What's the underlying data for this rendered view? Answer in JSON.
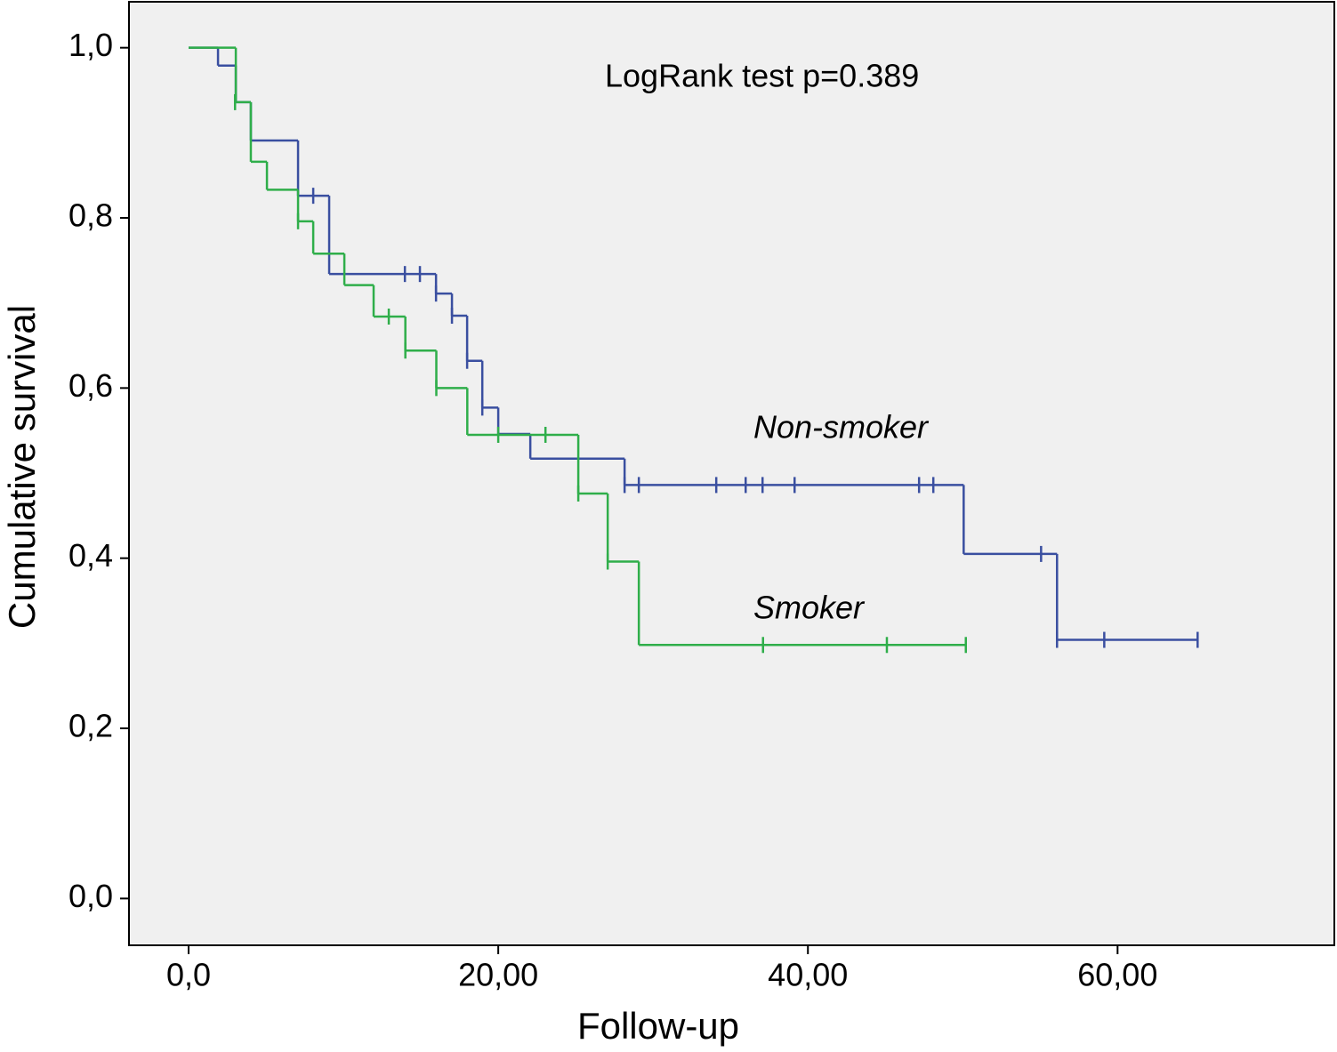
{
  "chart_data": {
    "type": "survival",
    "annotation": "LogRank test p=0.389",
    "xlabel": "Follow-up",
    "ylabel": "Cumulative survival",
    "xlim": [
      -3.85,
      74.0
    ],
    "ylim": [
      -0.055,
      1.054
    ],
    "xticks": [
      {
        "value": 0,
        "label": "0,0"
      },
      {
        "value": 20,
        "label": "20,00"
      },
      {
        "value": 40,
        "label": "40,00"
      },
      {
        "value": 60,
        "label": "60,00"
      }
    ],
    "yticks": [
      {
        "value": 0,
        "label": "0,0"
      },
      {
        "value": 0.2,
        "label": "0,2"
      },
      {
        "value": 0.4,
        "label": "0,4"
      },
      {
        "value": 0.6,
        "label": "0,6"
      },
      {
        "value": 0.8,
        "label": "0,8"
      },
      {
        "value": 1.0,
        "label": "1,0"
      }
    ],
    "series": [
      {
        "name": "Non-smoker",
        "color": "#3a4fa0",
        "x": [
          0,
          1.9,
          3.05,
          4.02,
          7.07,
          9.08,
          15.98,
          17.01,
          17.99,
          18.97,
          20.0,
          22.07,
          28.16,
          50.06,
          56.09,
          65.17
        ],
        "values": [
          1.0,
          0.979,
          0.936,
          0.891,
          0.826,
          0.734,
          0.711,
          0.685,
          0.632,
          0.577,
          0.546,
          0.517,
          0.486,
          0.405,
          0.304,
          0.304
        ],
        "censored_x": [
          8.05,
          13.97,
          14.94,
          15.98,
          17.01,
          17.99,
          18.97,
          28.16,
          29.08,
          34.08,
          35.98,
          37.07,
          39.14,
          47.18,
          48.1,
          55.06,
          56.09,
          59.14,
          65.17
        ],
        "censored_values": [
          0.826,
          0.734,
          0.734,
          0.711,
          0.685,
          0.632,
          0.577,
          0.486,
          0.486,
          0.486,
          0.486,
          0.486,
          0.486,
          0.486,
          0.486,
          0.405,
          0.304,
          0.304,
          0.304
        ]
      },
      {
        "name": "Smoker",
        "color": "#2fae4a",
        "x": [
          0,
          3.05,
          4.02,
          5.06,
          7.07,
          8.05,
          10.06,
          11.95,
          14.0,
          16.0,
          18.0,
          25.17,
          27.07,
          29.08,
          50.2
        ],
        "values": [
          1.0,
          0.936,
          0.866,
          0.833,
          0.796,
          0.758,
          0.721,
          0.684,
          0.644,
          0.6,
          0.545,
          0.476,
          0.396,
          0.298,
          0.298
        ],
        "censored_x": [
          3.0,
          7.07,
          12.93,
          14.0,
          16.0,
          20.0,
          23.05,
          25.17,
          27.07,
          37.1,
          45.1,
          50.2
        ],
        "censored_values": [
          0.936,
          0.796,
          0.684,
          0.644,
          0.6,
          0.545,
          0.545,
          0.476,
          0.396,
          0.298,
          0.298,
          0.298
        ]
      }
    ]
  }
}
